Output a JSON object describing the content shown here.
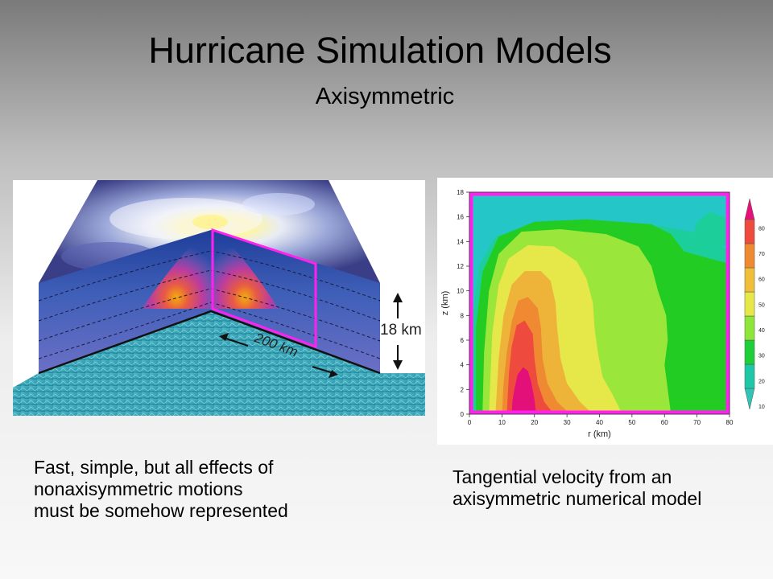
{
  "slide": {
    "title": "Hurricane Simulation Models",
    "subtitle": "Axisymmetric"
  },
  "schematic": {
    "height_label": "18 km",
    "radius_label": "200 km"
  },
  "chart_data": {
    "type": "contour",
    "xlabel": "r (km)",
    "ylabel": "z (km)",
    "xlim": [
      0,
      80
    ],
    "ylim": [
      0,
      18
    ],
    "x_ticks": [
      0,
      10,
      20,
      30,
      40,
      50,
      60,
      70,
      80
    ],
    "y_ticks": [
      0,
      2,
      4,
      6,
      8,
      10,
      12,
      14,
      16,
      18
    ],
    "colorbar_ticks": [
      10,
      20,
      30,
      40,
      50,
      60,
      70,
      80
    ],
    "colorbar_colors": [
      "#2ec5b8",
      "#1ec8a6",
      "#1ecf3a",
      "#8fe63a",
      "#e6e84a",
      "#f1be3a",
      "#f08a30",
      "#ee4a3e",
      "#e6107a"
    ],
    "contour_colors": {
      "10": "#25c6c8",
      "20": "#1ccf9a",
      "30": "#22cc22",
      "40": "#9ae63a",
      "50": "#e6e84a",
      "60": "#eeb43a",
      "70": "#ef8a32",
      "80": "#ef4a3e",
      "90": "#e4107a"
    },
    "frame_color": "#ff22ee"
  },
  "captions": {
    "left": [
      "Fast, simple, but all effects of",
      "nonaxisymmetric motions",
      "must be somehow represented"
    ],
    "right": [
      "Tangential velocity from an",
      "axisymmetric numerical model"
    ]
  }
}
